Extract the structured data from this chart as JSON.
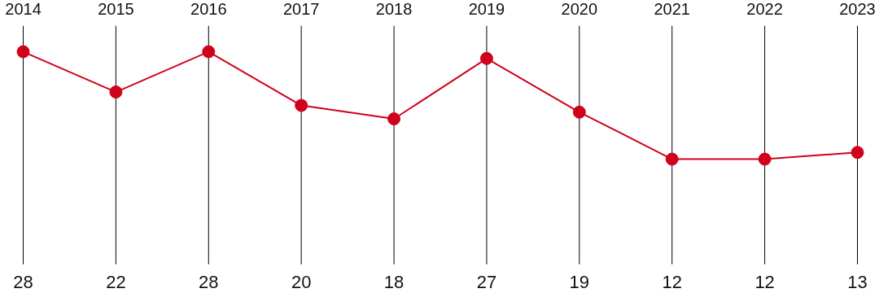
{
  "chart_data": {
    "type": "line",
    "categories": [
      "2014",
      "2015",
      "2016",
      "2017",
      "2018",
      "2019",
      "2020",
      "2021",
      "2022",
      "2023"
    ],
    "values": [
      28,
      22,
      28,
      20,
      18,
      27,
      19,
      12,
      12,
      13
    ],
    "color": "#d0021b",
    "marker": "circle",
    "data_labels": true,
    "grid": "x"
  }
}
